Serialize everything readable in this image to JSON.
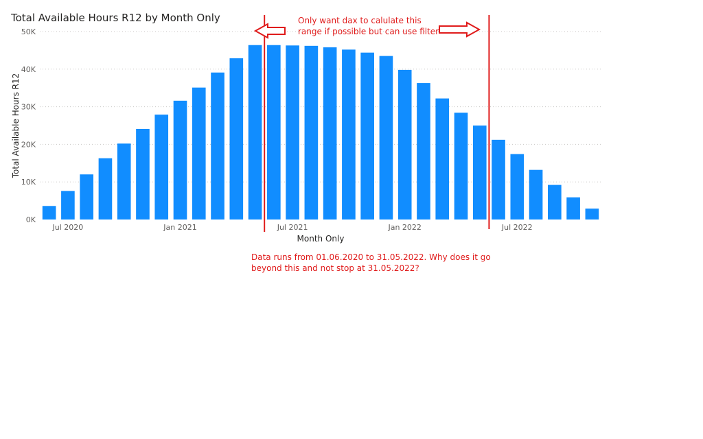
{
  "chart_data": {
    "type": "bar",
    "title": "Total Available Hours R12 by Month Only",
    "xlabel": "Month Only",
    "ylabel": "Total Available Hours R12",
    "ylim": [
      0,
      50000
    ],
    "yticks": [
      "0K",
      "10K",
      "20K",
      "30K",
      "40K",
      "50K"
    ],
    "x_tick_labels": [
      {
        "month_index": 1,
        "label": "Jul 2020"
      },
      {
        "month_index": 7,
        "label": "Jan 2021"
      },
      {
        "month_index": 13,
        "label": "Jul 2021"
      },
      {
        "month_index": 19,
        "label": "Jan 2022"
      },
      {
        "month_index": 25,
        "label": "Jul 2022"
      }
    ],
    "categories": [
      "Jun 2020",
      "Jul 2020",
      "Aug 2020",
      "Sep 2020",
      "Oct 2020",
      "Nov 2020",
      "Dec 2020",
      "Jan 2021",
      "Feb 2021",
      "Mar 2021",
      "Apr 2021",
      "May 2021",
      "Jun 2021",
      "Jul 2021",
      "Aug 2021",
      "Sep 2021",
      "Oct 2021",
      "Nov 2021",
      "Dec 2021",
      "Jan 2022",
      "Feb 2022",
      "Mar 2022",
      "Apr 2022",
      "May 2022",
      "Jun 2022",
      "Jul 2022",
      "Aug 2022",
      "Sep 2022",
      "Oct 2022",
      "Nov 2022"
    ],
    "values": [
      3600,
      7600,
      12000,
      16300,
      20200,
      24100,
      27900,
      31600,
      35100,
      39100,
      42900,
      46400,
      46400,
      46300,
      46200,
      45800,
      45200,
      44400,
      43500,
      39800,
      36300,
      32200,
      28400,
      25000,
      21200,
      17400,
      13200,
      9200,
      5900,
      2900
    ],
    "grid": true,
    "bar_color": "#118dff"
  },
  "annotations": {
    "range_note": "Only want dax to calulate this\nrange if possible but can use filter",
    "data_note": "Data runs from 01.06.2020 to 31.05.2022.  Why does it go\nbeyond this and not stop at 31.05.2022?",
    "range_start_month_index": 11.5,
    "range_end_month_index": 23.5,
    "color": "#e01b1b"
  }
}
